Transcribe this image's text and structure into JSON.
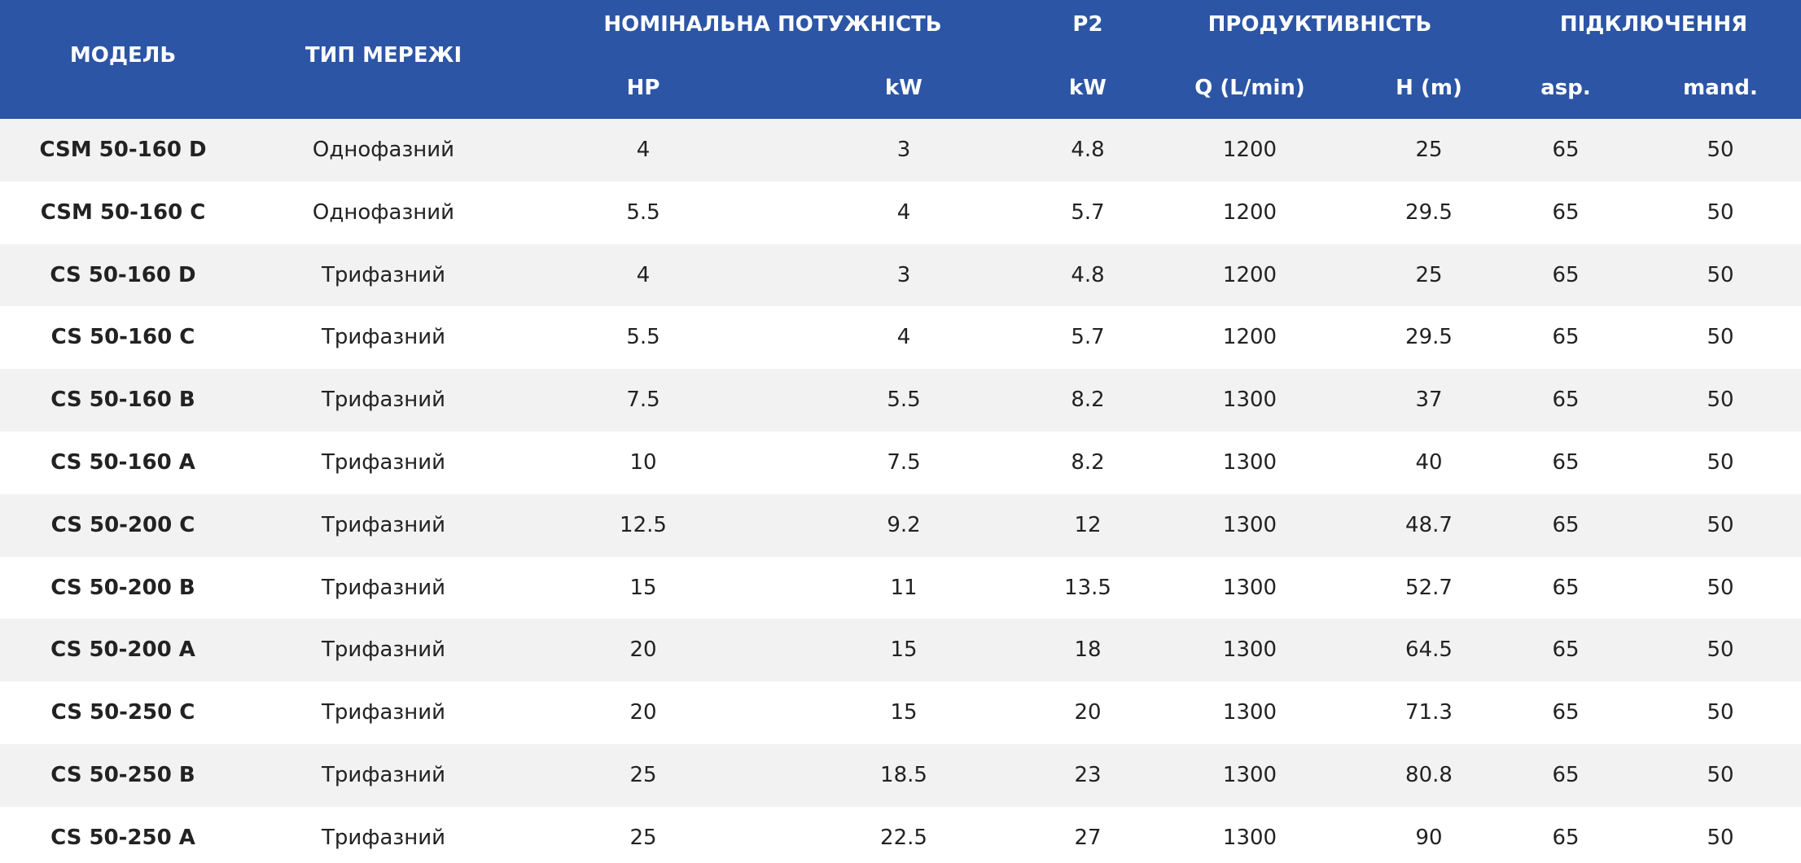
{
  "table": {
    "header": {
      "groups": [
        "МОДЕЛЬ",
        "ТИП МЕРЕЖІ",
        "НОМІНАЛЬНА ПОТУЖНІСТЬ",
        "P2",
        "ПРОДУКТИВНІСТЬ",
        "ПІДКЛЮЧЕННЯ"
      ],
      "subs": [
        "HP",
        "kW",
        "kW",
        "Q (L/min)",
        "H (m)",
        "asp.",
        "mand."
      ]
    },
    "rows": [
      [
        "CSM 50-160 D",
        "Однофазний",
        4,
        3,
        4.8,
        1200,
        25,
        65,
        50
      ],
      [
        "CSM 50-160 C",
        "Однофазний",
        5.5,
        4,
        5.7,
        1200,
        29.5,
        65,
        50
      ],
      [
        "CS 50-160 D",
        "Трифазний",
        4,
        3,
        4.8,
        1200,
        25,
        65,
        50
      ],
      [
        "CS 50-160 C",
        "Трифазний",
        5.5,
        4,
        5.7,
        1200,
        29.5,
        65,
        50
      ],
      [
        "CS 50-160 B",
        "Трифазний",
        7.5,
        5.5,
        8.2,
        1300,
        37,
        65,
        50
      ],
      [
        "CS 50-160 A",
        "Трифазний",
        10,
        7.5,
        8.2,
        1300,
        40,
        65,
        50
      ],
      [
        "CS 50-200 C",
        "Трифазний",
        12.5,
        9.2,
        12,
        1300,
        48.7,
        65,
        50
      ],
      [
        "CS 50-200 B",
        "Трифазний",
        15,
        11,
        13.5,
        1300,
        52.7,
        65,
        50
      ],
      [
        "CS 50-200 A",
        "Трифазний",
        20,
        15,
        18,
        1300,
        64.5,
        65,
        50
      ],
      [
        "CS 50-250 C",
        "Трифазний",
        20,
        15,
        20,
        1300,
        71.3,
        65,
        50
      ],
      [
        "CS 50-250 B",
        "Трифазний",
        25,
        18.5,
        23,
        1300,
        80.8,
        65,
        50
      ],
      [
        "CS 50-250 A",
        "Трифазний",
        25,
        22.5,
        27,
        1300,
        90,
        65,
        50
      ]
    ]
  }
}
